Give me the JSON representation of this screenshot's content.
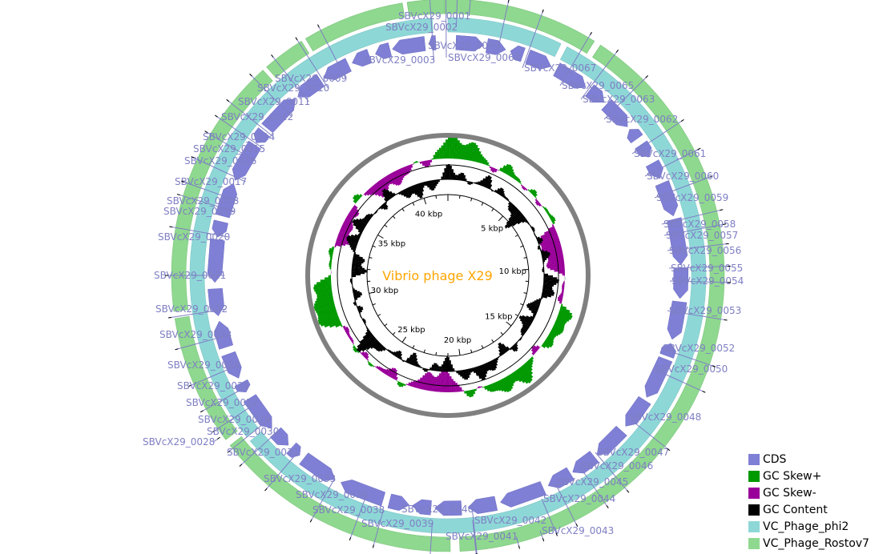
{
  "title": "Vibrio phage X29",
  "title_color": "#ffa500",
  "genome_length_kbp": 42,
  "colors": {
    "cds": "#7f7fd5",
    "gc_skew_plus": "#009900",
    "gc_skew_minus": "#990099",
    "gc_content": "#000000",
    "phi2": "#8ed7d7",
    "rostov7": "#8fd88f",
    "axis": "#808080",
    "label": "#7f7fc4"
  },
  "legend": [
    {
      "label": "CDS",
      "color": "#7f7fd5"
    },
    {
      "label": "GC Skew+",
      "color": "#009900"
    },
    {
      "label": "GC Skew-",
      "color": "#990099"
    },
    {
      "label": "GC Content",
      "color": "#000000"
    },
    {
      "label": "VC_Phage_phi2",
      "color": "#8ed7d7"
    },
    {
      "label": "VC_Phage_Rostov7",
      "color": "#8fd88f"
    }
  ],
  "ticks": [
    "5 kbp",
    "10 kbp",
    "15 kbp",
    "20 kbp",
    "25 kbp",
    "30 kbp",
    "35 kbp",
    "40 kbp"
  ],
  "genes": [
    "SBVcX29_0001",
    "SBVcX29_0002",
    "SBVcX29_0003",
    "SBVcX29_0009",
    "SBVcX29_0010",
    "SBVcX29_0011",
    "SBVcX29_0012",
    "SBVcX29_0014",
    "SBVcX29_0015",
    "SBVcX29_0016",
    "SBVcX29_0017",
    "SBVcX29_0018",
    "SBVcX29_0019",
    "SBVcX29_0020",
    "SBVcX29_0021",
    "SBVcX29_0022",
    "SBVcX29_0023",
    "SBVcX29_0024",
    "SBVcX29_0025",
    "SBVcX29_0027",
    "SBVcX29_0029",
    "SBVcX29_0030",
    "SBVcX29_0028",
    "SBVcX29_0031",
    "SBVcX29_0033",
    "SBVcX29_0036",
    "SBVcX29_0038",
    "SBVcX29_0039",
    "SBVcX29_0040",
    "SBVcX29_0041",
    "SBVcX29_0042",
    "SBVcX29_0043",
    "SBVcX29_0044",
    "SBVcX29_0045",
    "SBVcX29_0046",
    "SBVcX29_0047",
    "SBVcX29_0048",
    "SBVcX29_0050",
    "SBVcX29_0052",
    "SBVcX29_0053",
    "SBVcX29_0054",
    "SBVcX29_0055",
    "SBVcX29_0056",
    "SBVcX29_0057",
    "SBVcX29_0058",
    "SBVcX29_0059",
    "SBVcX29_0060",
    "SBVcX29_0061",
    "SBVcX29_0062",
    "SBVcX29_0063",
    "SBVcX29_0065",
    "SBVcX29_0067",
    "SBVcX29_0068",
    "SBVcX29_0069"
  ]
}
